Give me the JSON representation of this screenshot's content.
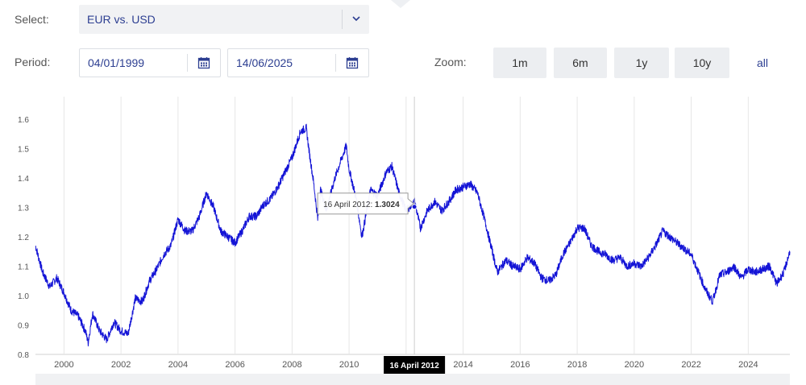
{
  "controls": {
    "select_label": "Select:",
    "select_value": "EUR vs. USD",
    "period_label": "Period:",
    "date_from": "04/01/1999",
    "date_to": "14/06/2025",
    "zoom_label": "Zoom:",
    "zoom_buttons": [
      "1m",
      "6m",
      "1y",
      "10y"
    ],
    "zoom_all": "all"
  },
  "colors": {
    "line": "#1414d6",
    "accent": "#2c3e91",
    "grid": "#e6e6e6"
  },
  "icons": {
    "select": "chevron-down-icon",
    "date": "calendar-icon"
  },
  "chart_data": {
    "type": "line",
    "title": "",
    "xlabel": "",
    "ylabel": "",
    "xlim": [
      1999.0,
      2025.46
    ],
    "ylim": [
      0.8,
      1.65
    ],
    "x_ticks": [
      2000,
      2002,
      2004,
      2006,
      2008,
      2010,
      2012,
      2014,
      2016,
      2018,
      2020,
      2022,
      2024
    ],
    "x_tick_labels": [
      "2000",
      "2002",
      "2004",
      "2006",
      "2008",
      "2010",
      "2012",
      "2014",
      "2016",
      "2018",
      "2020",
      "2022",
      "2024"
    ],
    "y_ticks": [
      0.8,
      0.9,
      1.0,
      1.1,
      1.2,
      1.3,
      1.4,
      1.5,
      1.6
    ],
    "y_tick_labels": [
      "0.8",
      "0.9",
      "1.0",
      "1.1",
      "1.2",
      "1.3",
      "1.4",
      "1.5",
      "1.6"
    ],
    "grid": "vertical",
    "legend": "none",
    "series": [
      {
        "x": [
          1999.0,
          1999.25,
          1999.5,
          1999.75,
          2000.0,
          2000.25,
          2000.5,
          2000.75,
          2000.85,
          2001.0,
          2001.25,
          2001.5,
          2001.75,
          2002.0,
          2002.25,
          2002.5,
          2002.75,
          2003.0,
          2003.25,
          2003.5,
          2003.75,
          2004.0,
          2004.25,
          2004.5,
          2004.75,
          2005.0,
          2005.25,
          2005.5,
          2005.75,
          2006.0,
          2006.25,
          2006.5,
          2006.75,
          2007.0,
          2007.25,
          2007.5,
          2007.75,
          2008.0,
          2008.3,
          2008.5,
          2008.6,
          2008.75,
          2008.9,
          2009.0,
          2009.2,
          2009.5,
          2009.75,
          2009.9,
          2010.0,
          2010.25,
          2010.45,
          2010.6,
          2010.75,
          2011.0,
          2011.3,
          2011.5,
          2011.75,
          2012.0,
          2012.3,
          2012.5,
          2012.75,
          2013.0,
          2013.25,
          2013.5,
          2013.75,
          2014.0,
          2014.25,
          2014.5,
          2014.75,
          2015.0,
          2015.2,
          2015.5,
          2015.75,
          2016.0,
          2016.25,
          2016.5,
          2016.75,
          2017.0,
          2017.25,
          2017.5,
          2017.75,
          2018.0,
          2018.25,
          2018.5,
          2018.75,
          2019.0,
          2019.25,
          2019.5,
          2019.75,
          2020.0,
          2020.25,
          2020.5,
          2020.75,
          2021.0,
          2021.25,
          2021.5,
          2021.75,
          2022.0,
          2022.25,
          2022.5,
          2022.75,
          2023.0,
          2023.25,
          2023.5,
          2023.75,
          2024.0,
          2024.25,
          2024.5,
          2024.75,
          2025.0,
          2025.25,
          2025.46
        ],
        "y": [
          1.17,
          1.08,
          1.03,
          1.06,
          1.01,
          0.95,
          0.93,
          0.88,
          0.84,
          0.94,
          0.88,
          0.85,
          0.91,
          0.88,
          0.87,
          0.99,
          0.98,
          1.05,
          1.09,
          1.14,
          1.17,
          1.26,
          1.22,
          1.22,
          1.27,
          1.35,
          1.3,
          1.22,
          1.2,
          1.18,
          1.22,
          1.27,
          1.27,
          1.31,
          1.33,
          1.37,
          1.42,
          1.47,
          1.56,
          1.57,
          1.49,
          1.39,
          1.26,
          1.36,
          1.29,
          1.4,
          1.47,
          1.51,
          1.43,
          1.33,
          1.2,
          1.28,
          1.36,
          1.34,
          1.42,
          1.44,
          1.35,
          1.29,
          1.32,
          1.23,
          1.29,
          1.32,
          1.29,
          1.32,
          1.36,
          1.37,
          1.38,
          1.35,
          1.26,
          1.16,
          1.08,
          1.12,
          1.1,
          1.09,
          1.13,
          1.11,
          1.06,
          1.05,
          1.07,
          1.14,
          1.18,
          1.23,
          1.23,
          1.17,
          1.15,
          1.14,
          1.12,
          1.13,
          1.1,
          1.11,
          1.1,
          1.13,
          1.17,
          1.22,
          1.2,
          1.18,
          1.16,
          1.14,
          1.08,
          1.02,
          0.98,
          1.07,
          1.08,
          1.1,
          1.06,
          1.09,
          1.08,
          1.09,
          1.1,
          1.04,
          1.08,
          1.15
        ]
      }
    ],
    "tooltip": {
      "date_label": "16 April 2012",
      "value": "1.3024",
      "text": "16 April 2012: ",
      "x": 2012.29,
      "y": 1.3024
    }
  }
}
